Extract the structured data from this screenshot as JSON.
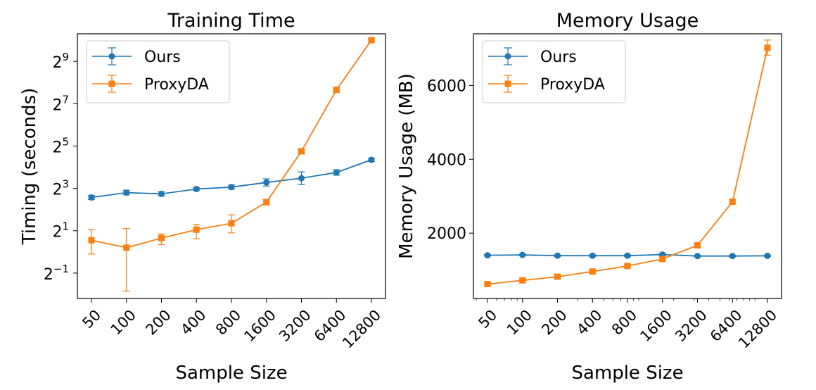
{
  "chart_data": [
    {
      "type": "line",
      "title": "Training Time",
      "xlabel": "Sample Size",
      "ylabel": "Timing (seconds)",
      "xscale": "log2",
      "yscale": "log2",
      "x": [
        50,
        100,
        200,
        400,
        800,
        1600,
        3200,
        6400,
        12800
      ],
      "xtick_labels": [
        "50",
        "100",
        "200",
        "400",
        "800",
        "1600",
        "3200",
        "6400",
        "12800"
      ],
      "ylim_log2": [
        -2.2,
        10.3
      ],
      "yticks_log2": [
        -1,
        1,
        3,
        5,
        7,
        9
      ],
      "ytick_base": "2",
      "ytick_exps": [
        "−1",
        "1",
        "3",
        "5",
        "7",
        "9"
      ],
      "grid": false,
      "legend": "top-left",
      "series": [
        {
          "name": "Ours",
          "color": "#1f77b4",
          "marker": "circle",
          "values_log2": [
            2.57,
            2.8,
            2.74,
            2.97,
            3.06,
            3.28,
            3.48,
            3.75,
            4.35
          ],
          "err_low_log2": [
            2.47,
            2.69,
            2.64,
            2.89,
            2.96,
            3.11,
            3.18,
            3.62,
            4.27
          ],
          "err_high_log2": [
            2.67,
            2.91,
            2.84,
            3.05,
            3.16,
            3.45,
            3.78,
            3.88,
            4.43
          ]
        },
        {
          "name": "ProxyDA",
          "color": "#ff7f0e",
          "marker": "square",
          "values_log2": [
            0.55,
            0.2,
            0.65,
            1.05,
            1.35,
            2.35,
            4.75,
            7.65,
            10.0
          ],
          "err_low_log2": [
            -0.1,
            -1.85,
            0.35,
            0.62,
            0.9,
            2.22,
            4.65,
            7.55,
            9.93
          ],
          "err_high_log2": [
            1.05,
            1.1,
            0.85,
            1.3,
            1.75,
            2.48,
            4.85,
            7.75,
            10.07
          ]
        }
      ]
    },
    {
      "type": "line",
      "title": "Memory Usage",
      "xlabel": "Sample Size",
      "ylabel": "Memory Usage (MB)",
      "xscale": "log2",
      "yscale": "linear",
      "x": [
        50,
        100,
        200,
        400,
        800,
        1600,
        3200,
        6400,
        12800
      ],
      "xtick_labels": [
        "50",
        "100",
        "200",
        "400",
        "800",
        "1600",
        "3200",
        "6400",
        "12800"
      ],
      "ylim": [
        230,
        7400
      ],
      "yticks": [
        2000,
        4000,
        6000
      ],
      "grid": false,
      "legend": "top-left",
      "series": [
        {
          "name": "Ours",
          "color": "#1f77b4",
          "marker": "circle",
          "values": [
            1400,
            1410,
            1390,
            1390,
            1390,
            1420,
            1380,
            1380,
            1385
          ],
          "err_low": [
            1380,
            1390,
            1370,
            1370,
            1370,
            1390,
            1360,
            1360,
            1365
          ],
          "err_high": [
            1420,
            1430,
            1410,
            1410,
            1410,
            1450,
            1400,
            1400,
            1405
          ]
        },
        {
          "name": "ProxyDA",
          "color": "#ff7f0e",
          "marker": "square",
          "values": [
            620,
            720,
            820,
            960,
            1110,
            1300,
            1670,
            2850,
            7020
          ],
          "err_low": [
            570,
            680,
            770,
            920,
            1070,
            1250,
            1610,
            2790,
            6820
          ],
          "err_high": [
            670,
            760,
            870,
            1000,
            1150,
            1350,
            1730,
            2910,
            7230
          ]
        }
      ]
    }
  ]
}
